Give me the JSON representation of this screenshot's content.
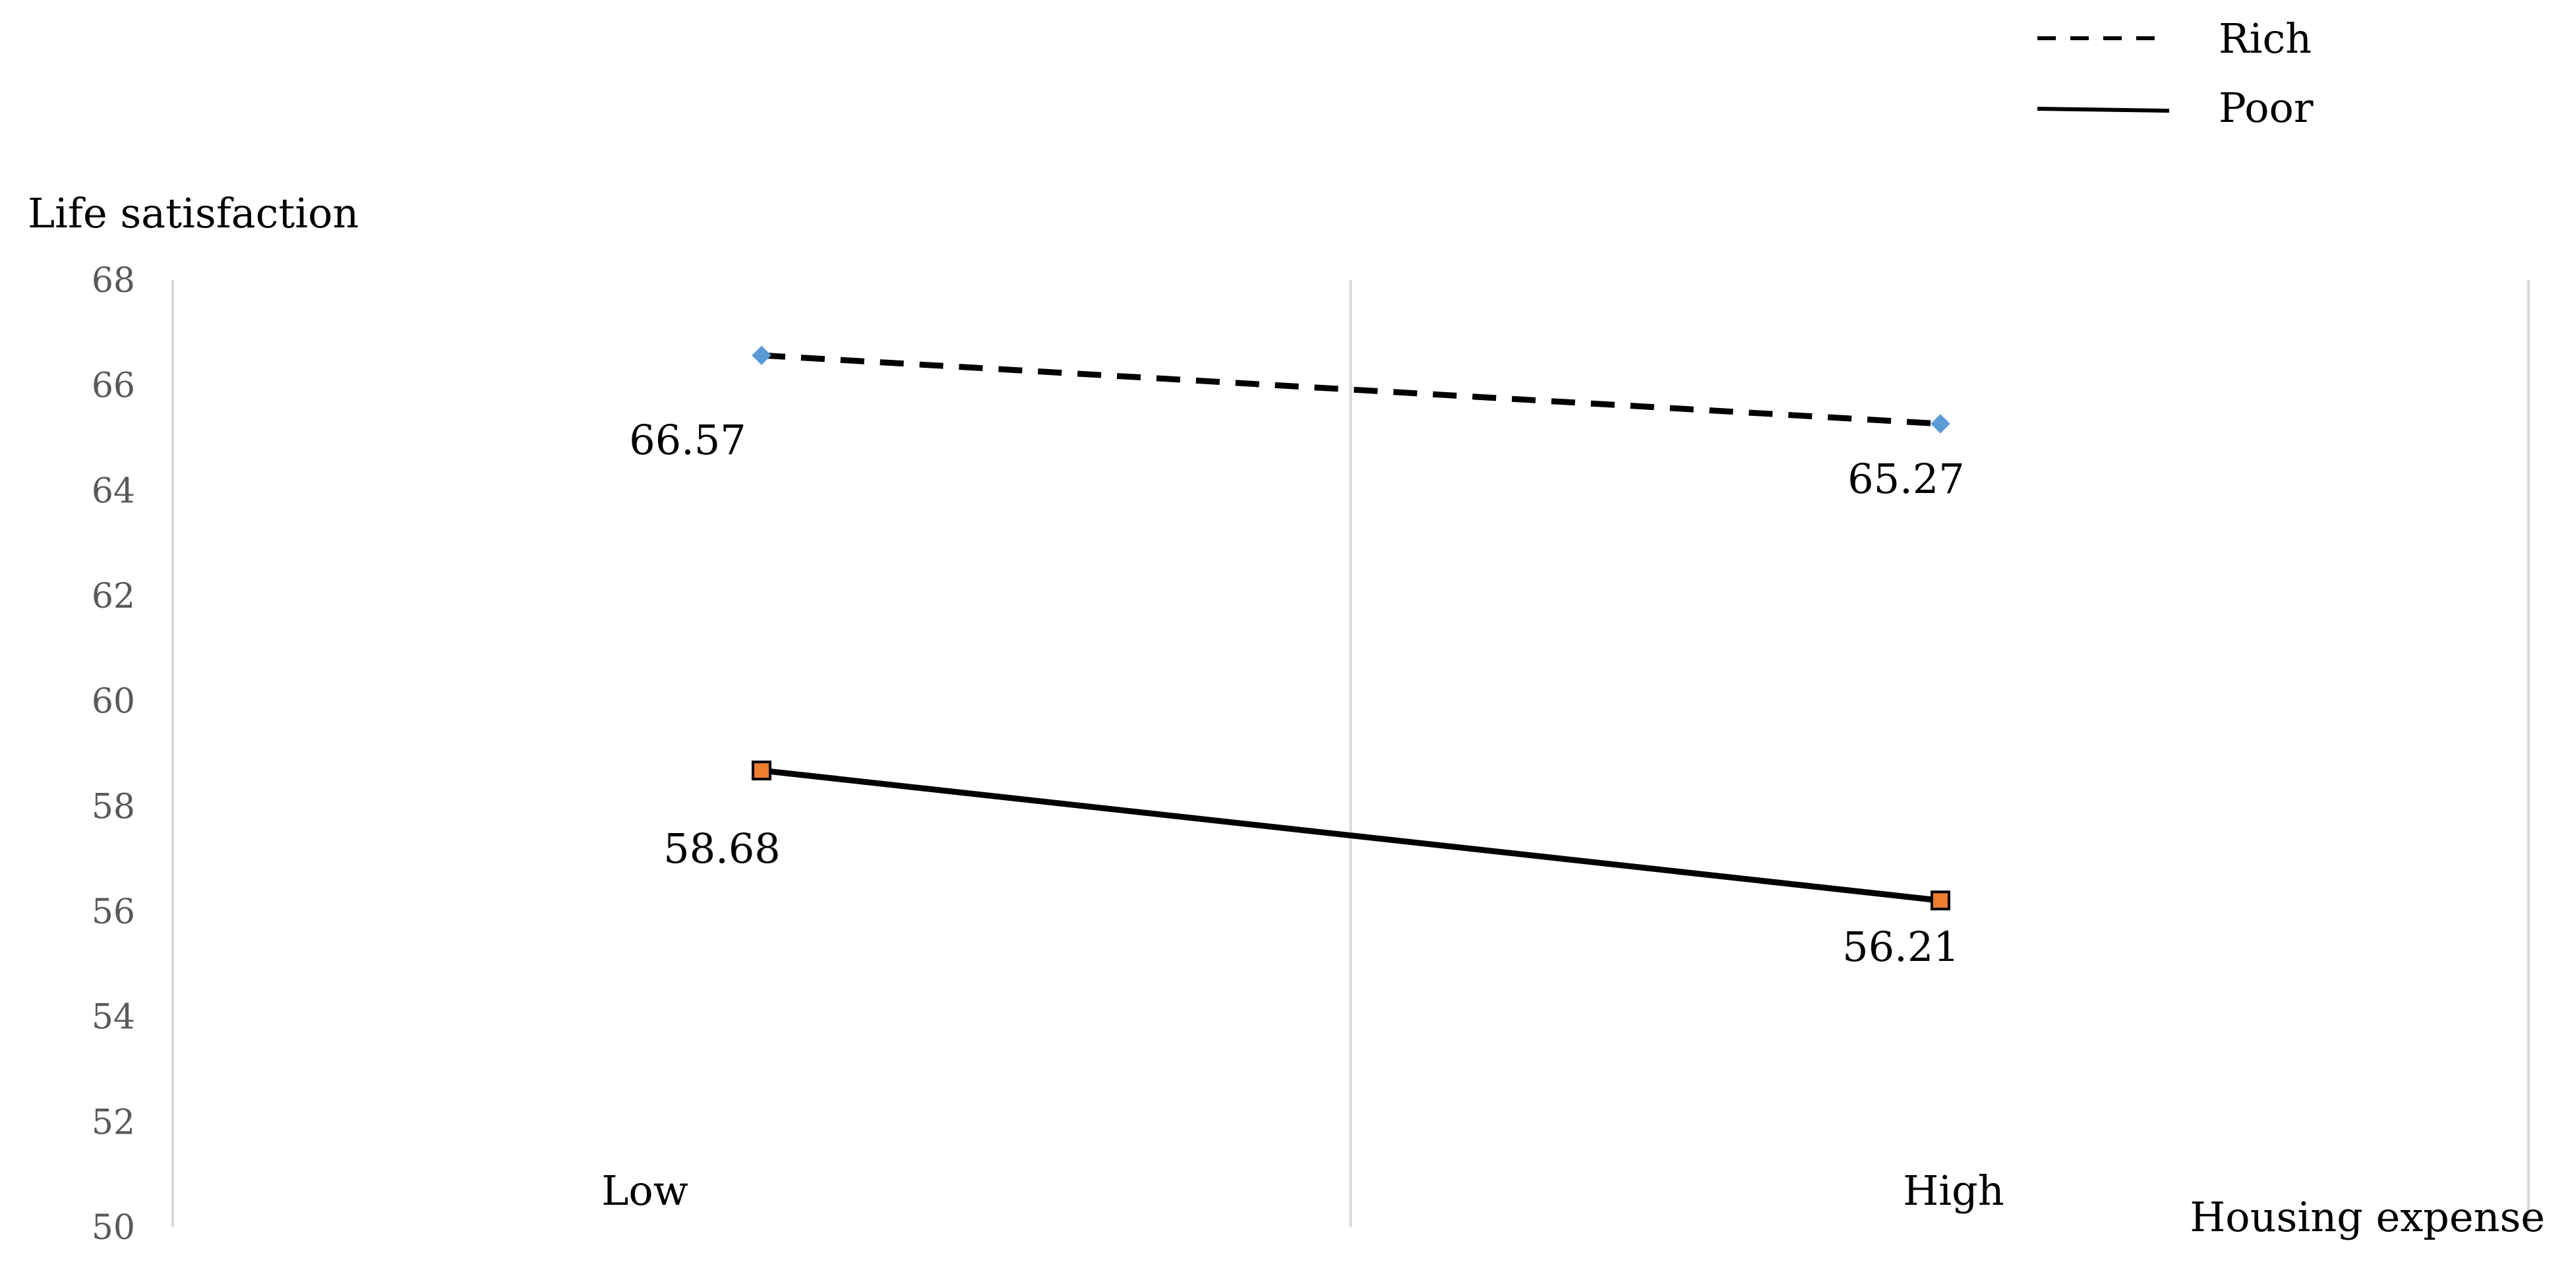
{
  "chart_data": {
    "type": "line",
    "title": "",
    "xlabel": "Housing expense",
    "ylabel": "Life satisfaction",
    "categories": [
      "Low",
      "High"
    ],
    "ylim": [
      50,
      68
    ],
    "yticks": [
      50,
      52,
      54,
      56,
      58,
      60,
      62,
      64,
      66,
      68
    ],
    "grid": "vertical",
    "legend_position": "top-right",
    "series": [
      {
        "name": "Rich",
        "values": [
          66.57,
          65.27
        ],
        "labels": [
          "66.57",
          "65.27"
        ],
        "line_style": "dashed",
        "line_color": "#000000",
        "marker": "diamond",
        "marker_color": "#5b9bd5"
      },
      {
        "name": "Poor",
        "values": [
          58.68,
          56.21
        ],
        "labels": [
          "58.68",
          "56.21"
        ],
        "line_style": "solid",
        "line_color": "#000000",
        "marker": "square",
        "marker_color": "#ed7d31"
      }
    ]
  }
}
